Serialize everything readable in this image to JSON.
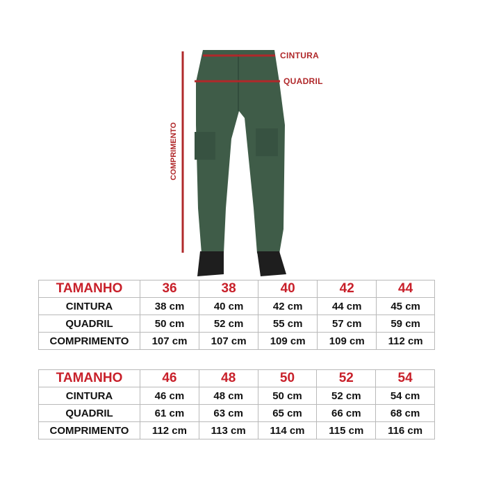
{
  "figure": {
    "labels": {
      "waist": "CINTURA",
      "hip": "QUADRIL",
      "length": "COMPRIMENTO"
    },
    "colors": {
      "measure_line": "#b0282a",
      "pants": "#3f5c48",
      "shoes": "#1e1e1e"
    }
  },
  "tables": [
    {
      "header": [
        "TAMANHO",
        "36",
        "38",
        "40",
        "42",
        "44"
      ],
      "rows": [
        [
          "CINTURA",
          "38 cm",
          "40 cm",
          "42 cm",
          "44 cm",
          "45 cm"
        ],
        [
          "QUADRIL",
          "50 cm",
          "52 cm",
          "55 cm",
          "57 cm",
          "59 cm"
        ],
        [
          "COMPRIMENTO",
          "107 cm",
          "107 cm",
          "109 cm",
          "109 cm",
          "112 cm"
        ]
      ]
    },
    {
      "header": [
        "TAMANHO",
        "46",
        "48",
        "50",
        "52",
        "54"
      ],
      "rows": [
        [
          "CINTURA",
          "46 cm",
          "48 cm",
          "50 cm",
          "52 cm",
          "54 cm"
        ],
        [
          "QUADRIL",
          "61 cm",
          "63 cm",
          "65 cm",
          "66 cm",
          "68 cm"
        ],
        [
          "COMPRIMENTO",
          "112 cm",
          "113 cm",
          "114 cm",
          "115 cm",
          "116 cm"
        ]
      ]
    }
  ]
}
